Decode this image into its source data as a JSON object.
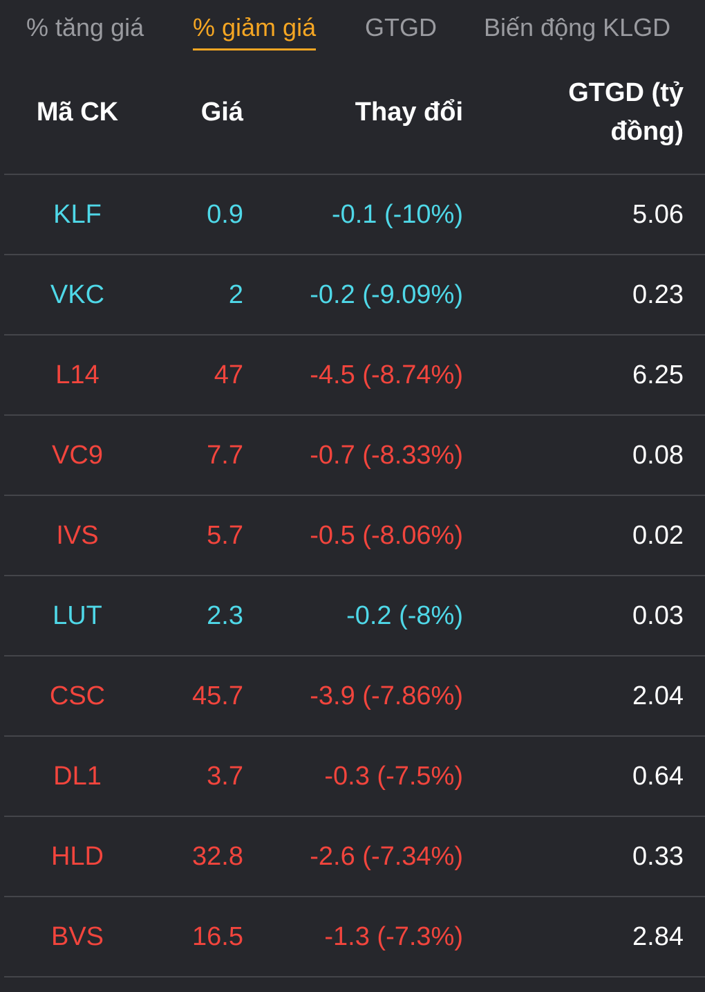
{
  "tabs": [
    {
      "label": "% tăng giá",
      "active": false
    },
    {
      "label": "% giảm giá",
      "active": true
    },
    {
      "label": "GTGD",
      "active": false
    },
    {
      "label": "Biến động KLGD",
      "active": false
    }
  ],
  "table": {
    "headers": {
      "code": "Mã CK",
      "price": "Giá",
      "change": "Thay đổi",
      "value_line1": "GTGD (tỷ",
      "value_line2": "đồng)"
    },
    "rows": [
      {
        "code": "KLF",
        "price": "0.9",
        "change": "-0.1 (-10%)",
        "value": "5.06",
        "color": "cyan"
      },
      {
        "code": "VKC",
        "price": "2",
        "change": "-0.2 (-9.09%)",
        "value": "0.23",
        "color": "cyan"
      },
      {
        "code": "L14",
        "price": "47",
        "change": "-4.5 (-8.74%)",
        "value": "6.25",
        "color": "red"
      },
      {
        "code": "VC9",
        "price": "7.7",
        "change": "-0.7 (-8.33%)",
        "value": "0.08",
        "color": "red"
      },
      {
        "code": "IVS",
        "price": "5.7",
        "change": "-0.5 (-8.06%)",
        "value": "0.02",
        "color": "red"
      },
      {
        "code": "LUT",
        "price": "2.3",
        "change": "-0.2 (-8%)",
        "value": "0.03",
        "color": "cyan"
      },
      {
        "code": "CSC",
        "price": "45.7",
        "change": "-3.9 (-7.86%)",
        "value": "2.04",
        "color": "red"
      },
      {
        "code": "DL1",
        "price": "3.7",
        "change": "-0.3 (-7.5%)",
        "value": "0.64",
        "color": "red"
      },
      {
        "code": "HLD",
        "price": "32.8",
        "change": "-2.6 (-7.34%)",
        "value": "0.33",
        "color": "red"
      },
      {
        "code": "BVS",
        "price": "16.5",
        "change": "-1.3 (-7.3%)",
        "value": "2.84",
        "color": "red"
      }
    ]
  },
  "colors": {
    "background": "#26272c",
    "accent": "#f5a623",
    "floor": "#4fd8e8",
    "down": "#f2453d",
    "divider": "#44454a"
  }
}
